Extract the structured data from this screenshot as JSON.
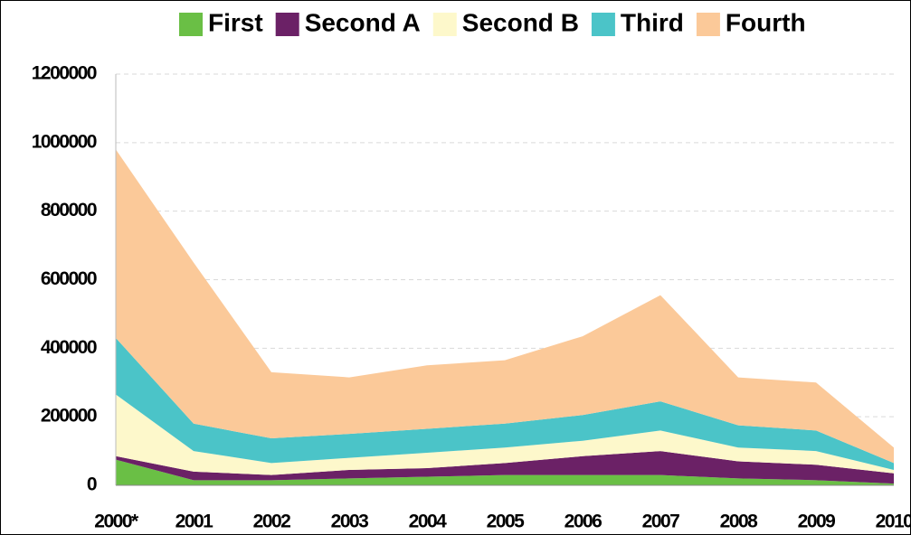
{
  "chart_data": {
    "type": "stacked-area",
    "categories": [
      "2000*",
      "2001",
      "2002",
      "2003",
      "2004",
      "2005",
      "2006",
      "2007",
      "2008",
      "2009",
      "2010"
    ],
    "series": [
      {
        "name": "First",
        "color": "#6abf45",
        "values": [
          75000,
          15000,
          15000,
          20000,
          25000,
          30000,
          30000,
          30000,
          20000,
          15000,
          5000
        ]
      },
      {
        "name": "Second A",
        "color": "#6b2166",
        "values": [
          10000,
          25000,
          15000,
          25000,
          25000,
          35000,
          55000,
          70000,
          50000,
          45000,
          30000
        ]
      },
      {
        "name": "Second B",
        "color": "#fdf8cb",
        "values": [
          180000,
          60000,
          35000,
          35000,
          45000,
          45000,
          45000,
          60000,
          40000,
          40000,
          10000
        ]
      },
      {
        "name": "Third",
        "color": "#4bc4c8",
        "values": [
          165000,
          80000,
          72000,
          70000,
          70000,
          70000,
          75000,
          85000,
          65000,
          60000,
          20000
        ]
      },
      {
        "name": "Fourth",
        "color": "#fbc999",
        "values": [
          550000,
          470000,
          193000,
          165000,
          185000,
          185000,
          230000,
          310000,
          140000,
          140000,
          45000
        ]
      }
    ],
    "ylim": [
      0,
      1200000
    ],
    "yticks": [
      0,
      200000,
      400000,
      600000,
      800000,
      1000000,
      1200000
    ],
    "grid": true,
    "legend": "top"
  }
}
